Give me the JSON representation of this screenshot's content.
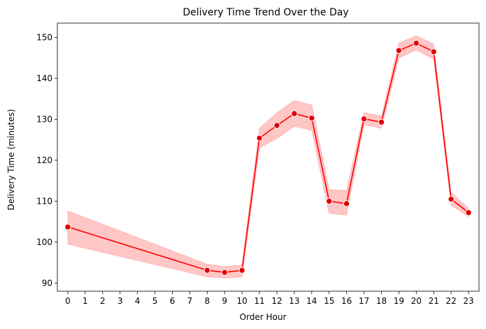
{
  "chart_data": {
    "type": "line",
    "title": "Delivery Time Trend Over the Day",
    "xlabel": "Order Hour",
    "ylabel": "Delivery Time (minutes)",
    "xlim": [
      -0.6,
      23.6
    ],
    "ylim": [
      88,
      153.5
    ],
    "xticks": [
      "0",
      "1",
      "2",
      "3",
      "4",
      "5",
      "6",
      "7",
      "8",
      "9",
      "10",
      "11",
      "12",
      "13",
      "14",
      "15",
      "16",
      "17",
      "18",
      "19",
      "20",
      "21",
      "22",
      "23"
    ],
    "yticks": [
      90,
      100,
      110,
      120,
      130,
      140,
      150
    ],
    "grid": false,
    "line_color": "#ff0000",
    "band_color": "#ffb3b3",
    "series": [
      {
        "x": [
          0,
          8,
          9,
          10,
          11,
          12,
          13,
          14,
          15,
          16,
          17,
          18,
          19,
          20,
          21,
          22,
          23
        ],
        "y": [
          103.7,
          93.1,
          92.6,
          93.1,
          125.4,
          128.5,
          131.4,
          130.3,
          110.0,
          109.4,
          130.1,
          129.3,
          146.8,
          148.6,
          146.5,
          110.5,
          107.2
        ],
        "ci_low": [
          99.5,
          91.5,
          91.2,
          91.5,
          123.0,
          125.3,
          128.3,
          127.3,
          107.0,
          106.6,
          128.7,
          127.8,
          145.0,
          146.9,
          144.7,
          109.0,
          106.2
        ],
        "ci_high": [
          107.6,
          94.6,
          94.0,
          94.4,
          127.8,
          131.6,
          134.6,
          133.5,
          112.8,
          112.6,
          131.6,
          130.8,
          148.6,
          150.4,
          148.4,
          112.1,
          108.3
        ]
      }
    ]
  }
}
